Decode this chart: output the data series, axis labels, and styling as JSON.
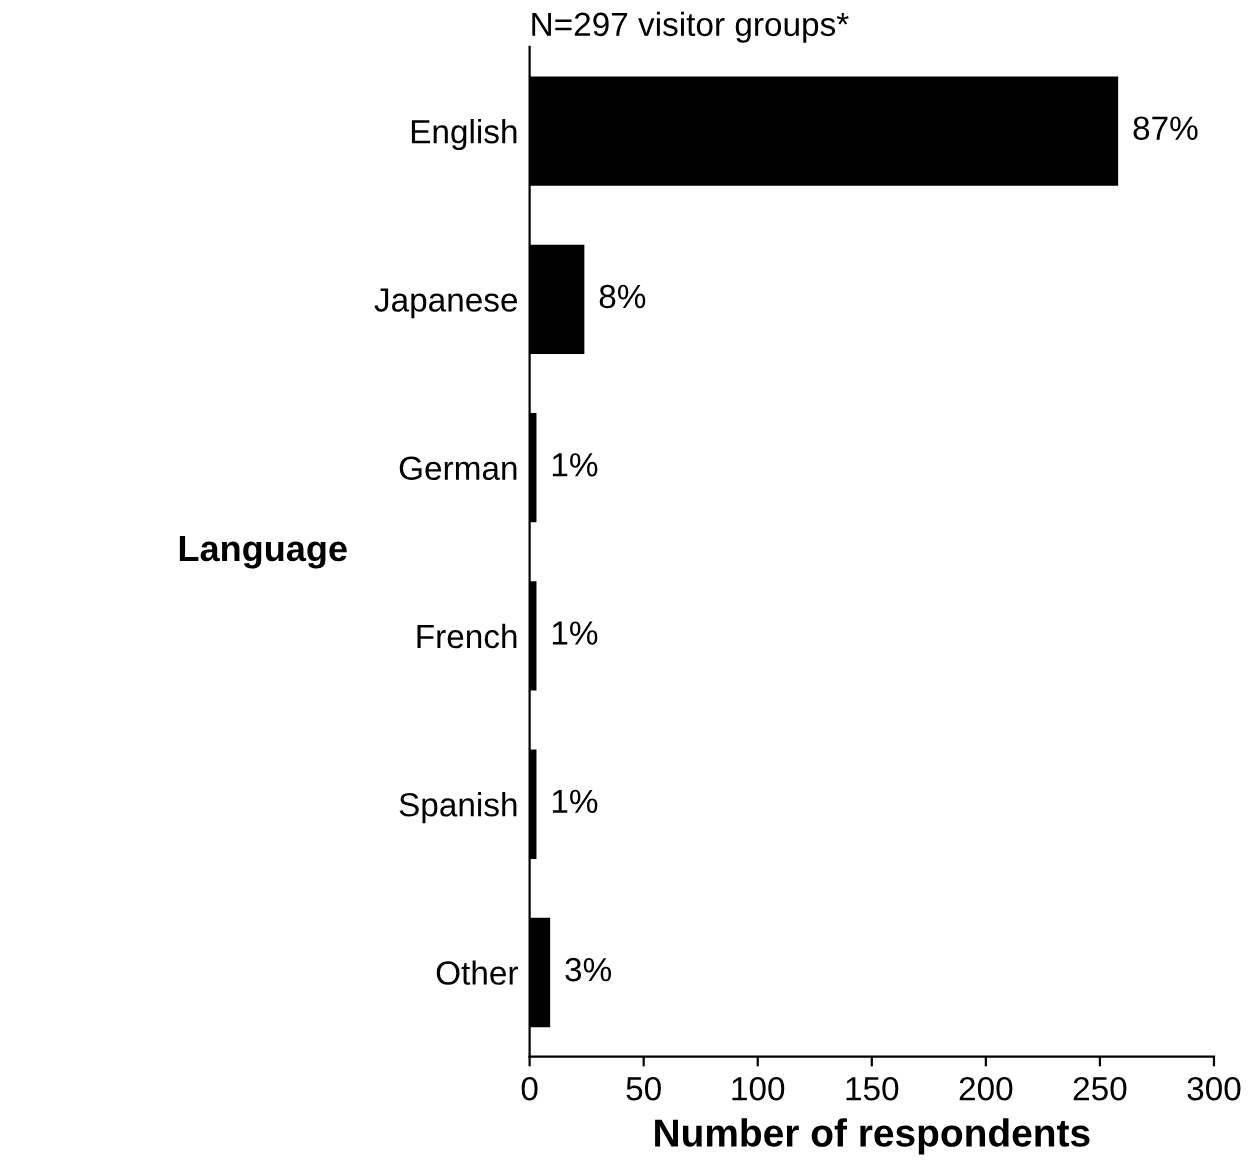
{
  "chart_data": {
    "type": "bar",
    "orientation": "horizontal",
    "title": "N=297 visitor groups*",
    "xlabel": "Number of respondents",
    "ylabel": "Language",
    "categories": [
      "English",
      "Japanese",
      "German",
      "French",
      "Spanish",
      "Other"
    ],
    "values": [
      258,
      24,
      3,
      3,
      3,
      9
    ],
    "annotations": [
      {
        "text": "87%",
        "x": 258,
        "y": "English"
      },
      {
        "text": "8%",
        "x": 24,
        "y": "Japanese"
      },
      {
        "text": "1%",
        "x": 3,
        "y": "German"
      },
      {
        "text": "1%",
        "x": 3,
        "y": "French"
      },
      {
        "text": "1%",
        "x": 3,
        "y": "Spanish"
      },
      {
        "text": "3%",
        "x": 9,
        "y": "Other"
      }
    ],
    "color": "#000000",
    "xlim": [
      0,
      300
    ],
    "xticks": [
      0,
      50,
      100,
      150,
      200,
      250,
      300
    ],
    "grid": false,
    "legend": false
  }
}
